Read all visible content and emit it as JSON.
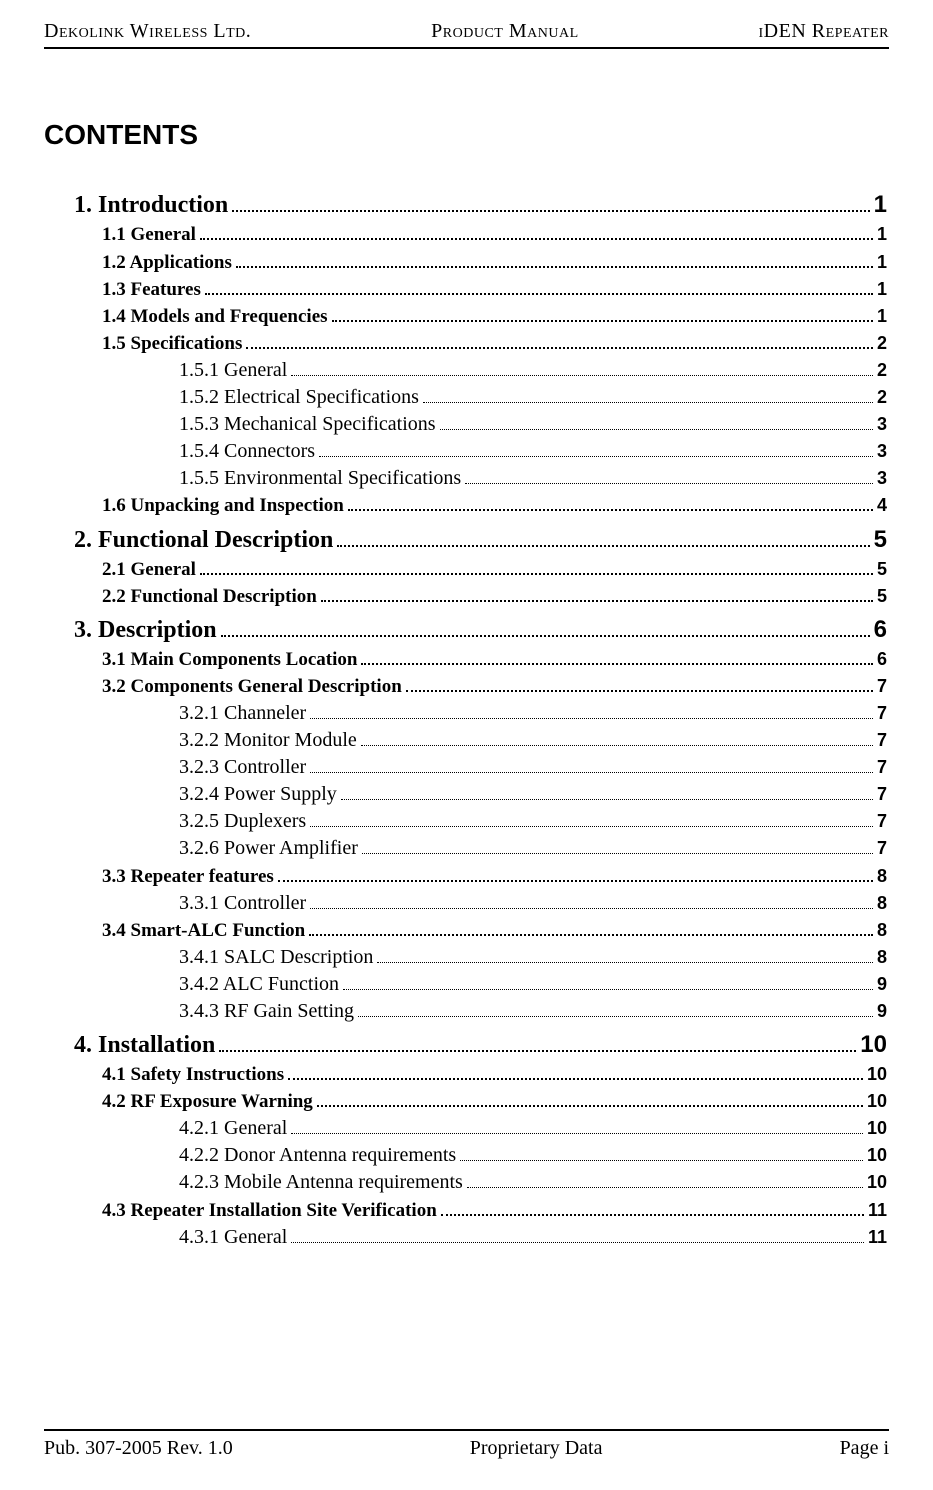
{
  "header": {
    "left": "Dekolink Wireless Ltd.",
    "center": "Product Manual",
    "right": "iDEN Repeater"
  },
  "footer": {
    "left": "Pub. 307-2005 Rev. 1.0",
    "center": "Proprietary Data",
    "right": "Page i"
  },
  "title": "CONTENTS",
  "toc": [
    {
      "level": 1,
      "label": "1. Introduction",
      "page": "1"
    },
    {
      "level": 2,
      "label": "1.1 General",
      "page": "1"
    },
    {
      "level": 2,
      "label": "1.2 Applications",
      "page": "1"
    },
    {
      "level": 2,
      "label": "1.3 Features",
      "page": "1"
    },
    {
      "level": 2,
      "label": "1.4 Models and Frequencies",
      "page": "1"
    },
    {
      "level": 2,
      "label": "1.5 Specifications",
      "page": "2"
    },
    {
      "level": 3,
      "label": "1.5.1 General",
      "page": "2"
    },
    {
      "level": 3,
      "label": "1.5.2 Electrical Specifications",
      "page": "2"
    },
    {
      "level": 3,
      "label": "1.5.3 Mechanical Specifications",
      "page": "3"
    },
    {
      "level": 3,
      "label": "1.5.4 Connectors",
      "page": "3"
    },
    {
      "level": 3,
      "label": "1.5.5 Environmental Specifications",
      "page": "3"
    },
    {
      "level": 2,
      "label": "1.6 Unpacking and Inspection",
      "page": "4"
    },
    {
      "level": 1,
      "label": "2. Functional Description",
      "page": "5"
    },
    {
      "level": 2,
      "label": "2.1 General",
      "page": "5"
    },
    {
      "level": 2,
      "label": "2.2 Functional Description",
      "page": "5"
    },
    {
      "level": 1,
      "label": "3. Description",
      "page": "6"
    },
    {
      "level": 2,
      "label": "3.1 Main Components Location",
      "page": "6"
    },
    {
      "level": 2,
      "label": "3.2 Components General Description",
      "page": "7"
    },
    {
      "level": 3,
      "label": "3.2.1 Channeler",
      "page": "7"
    },
    {
      "level": 3,
      "label": "3.2.2 Monitor Module",
      "page": "7"
    },
    {
      "level": 3,
      "label": "3.2.3 Controller",
      "page": "7"
    },
    {
      "level": 3,
      "label": "3.2.4 Power Supply",
      "page": "7"
    },
    {
      "level": 3,
      "label": "3.2.5 Duplexers",
      "page": "7"
    },
    {
      "level": 3,
      "label": "3.2.6 Power Amplifier",
      "page": "7"
    },
    {
      "level": 2,
      "label": "3.3 Repeater features",
      "page": "8"
    },
    {
      "level": 3,
      "label": "3.3.1 Controller",
      "page": "8"
    },
    {
      "level": 2,
      "label": "3.4 Smart-ALC Function",
      "page": "8"
    },
    {
      "level": 3,
      "label": "3.4.1 SALC Description",
      "page": "8"
    },
    {
      "level": 3,
      "label": "3.4.2 ALC Function",
      "page": "9"
    },
    {
      "level": 3,
      "label": "3.4.3 RF Gain Setting",
      "page": "9"
    },
    {
      "level": 1,
      "label": "4. Installation",
      "page": "10"
    },
    {
      "level": 2,
      "label": "4.1 Safety Instructions",
      "page": "10"
    },
    {
      "level": 2,
      "label": "4.2 RF Exposure Warning",
      "page": "10"
    },
    {
      "level": 3,
      "label": "4.2.1 General",
      "page": "10"
    },
    {
      "level": 3,
      "label": "4.2.2 Donor Antenna requirements",
      "page": "10"
    },
    {
      "level": 3,
      "label": "4.2.3 Mobile Antenna requirements",
      "page": "10"
    },
    {
      "level": 2,
      "label": "4.3 Repeater Installation Site Verification",
      "page": "11"
    },
    {
      "level": 3,
      "label": "4.3.1 General",
      "page": "11"
    }
  ]
}
